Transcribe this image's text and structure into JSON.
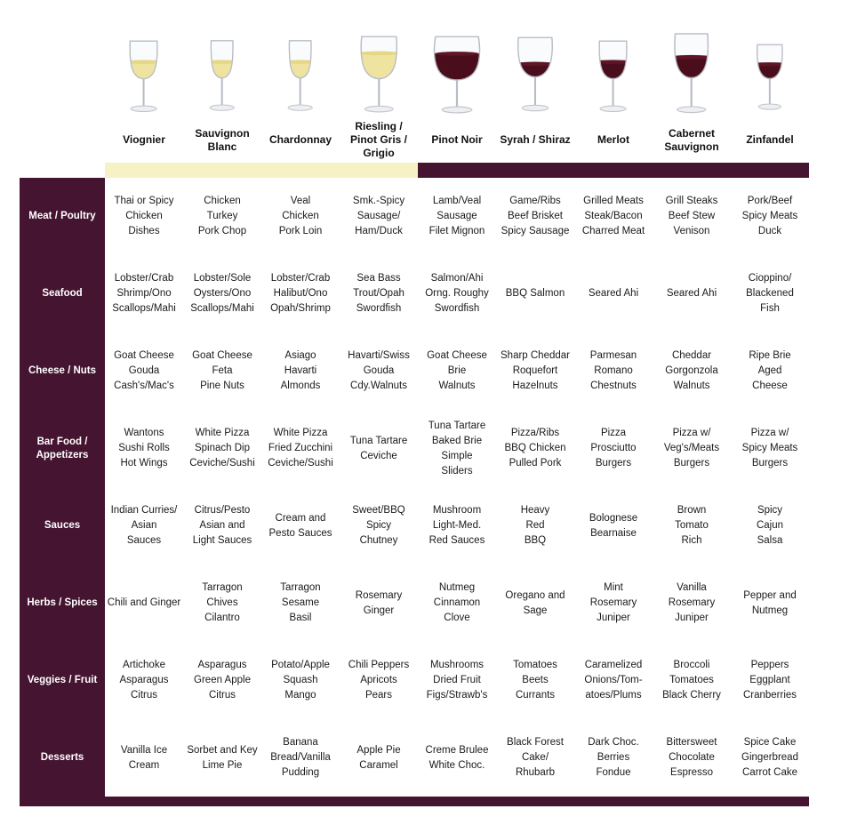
{
  "colors": {
    "maroon": "#451430",
    "white_band": "#F6F2C6",
    "white_wine": "#EFE3A0",
    "white_wine_surface": "#E4D788",
    "red_wine": "#4A0D1B",
    "red_wine_surface": "#5E1626",
    "text": "#1A1A1A"
  },
  "chart_data": {
    "type": "table",
    "columns": [
      {
        "name": "Viognier",
        "wine": "white",
        "glass": "taper"
      },
      {
        "name": "Sauvignon Blanc",
        "wine": "white",
        "glass": "flute"
      },
      {
        "name": "Chardonnay",
        "wine": "white",
        "glass": "flute"
      },
      {
        "name": "Riesling / Pinot Gris / Grigio",
        "wine": "white",
        "glass": "round"
      },
      {
        "name": "Pinot Noir",
        "wine": "red",
        "glass": "balloon"
      },
      {
        "name": "Syrah / Shiraz",
        "wine": "red",
        "glass": "tulip"
      },
      {
        "name": "Merlot",
        "wine": "red",
        "glass": "taper"
      },
      {
        "name": "Cabernet Sauvignon",
        "wine": "red",
        "glass": "large"
      },
      {
        "name": "Zinfandel",
        "wine": "red",
        "glass": "small"
      }
    ],
    "rows": [
      {
        "label": "Meat / Poultry",
        "cells": [
          [
            "Thai or Spicy",
            "Chicken",
            "Dishes"
          ],
          [
            "Chicken",
            "Turkey",
            "Pork Chop"
          ],
          [
            "Veal",
            "Chicken",
            "Pork Loin"
          ],
          [
            "Smk.-Spicy",
            "Sausage/",
            "Ham/Duck"
          ],
          [
            "Lamb/Veal",
            "Sausage",
            "Filet Mignon"
          ],
          [
            "Game/Ribs",
            "Beef Brisket",
            "Spicy Sausage"
          ],
          [
            "Grilled Meats",
            "Steak/Bacon",
            "Charred Meat"
          ],
          [
            "Grill Steaks",
            "Beef Stew",
            "Venison"
          ],
          [
            "Pork/Beef",
            "Spicy Meats",
            "Duck"
          ]
        ]
      },
      {
        "label": "Seafood",
        "cells": [
          [
            "Lobster/Crab",
            "Shrimp/Ono",
            "Scallops/Mahi"
          ],
          [
            "Lobster/Sole",
            "Oysters/Ono",
            "Scallops/Mahi"
          ],
          [
            "Lobster/Crab",
            "Halibut/Ono",
            "Opah/Shrimp"
          ],
          [
            "Sea Bass",
            "Trout/Opah",
            "Swordfish"
          ],
          [
            "Salmon/Ahi",
            "Orng. Roughy",
            "Swordfish"
          ],
          [
            "BBQ Salmon"
          ],
          [
            "Seared Ahi"
          ],
          [
            "Seared Ahi"
          ],
          [
            "Cioppino/",
            "Blackened",
            "Fish"
          ]
        ]
      },
      {
        "label": "Cheese / Nuts",
        "cells": [
          [
            "Goat Cheese",
            "Gouda",
            "Cash's/Mac's"
          ],
          [
            "Goat Cheese",
            "Feta",
            "Pine Nuts"
          ],
          [
            "Asiago",
            "Havarti",
            "Almonds"
          ],
          [
            "Havarti/Swiss",
            "Gouda",
            "Cdy.Walnuts"
          ],
          [
            "Goat Cheese",
            "Brie",
            "Walnuts"
          ],
          [
            "Sharp Cheddar",
            "Roquefort",
            "Hazelnuts"
          ],
          [
            "Parmesan",
            "Romano",
            "Chestnuts"
          ],
          [
            "Cheddar",
            "Gorgonzola",
            "Walnuts"
          ],
          [
            "Ripe Brie",
            "Aged",
            "Cheese"
          ]
        ]
      },
      {
        "label": "Bar Food / Appetizers",
        "cells": [
          [
            "Wantons",
            "Sushi Rolls",
            "Hot Wings"
          ],
          [
            "White Pizza",
            "Spinach Dip",
            "Ceviche/Sushi"
          ],
          [
            "White Pizza",
            "Fried Zucchini",
            "Ceviche/Sushi"
          ],
          [
            "Tuna Tartare",
            "Ceviche"
          ],
          [
            "Tuna Tartare",
            "Baked Brie",
            "Simple",
            "Sliders"
          ],
          [
            "Pizza/Ribs",
            "BBQ Chicken",
            "Pulled Pork"
          ],
          [
            "Pizza",
            "Prosciutto",
            "Burgers"
          ],
          [
            "Pizza w/",
            "Veg's/Meats",
            "Burgers"
          ],
          [
            "Pizza w/",
            "Spicy Meats",
            "Burgers"
          ]
        ]
      },
      {
        "label": "Sauces",
        "cells": [
          [
            "Indian Curries/",
            "Asian",
            "Sauces"
          ],
          [
            "Citrus/Pesto",
            "Asian and",
            "Light Sauces"
          ],
          [
            "Cream and",
            "Pesto Sauces"
          ],
          [
            "Sweet/BBQ",
            "Spicy",
            "Chutney"
          ],
          [
            "Mushroom",
            "Light-Med.",
            "Red Sauces"
          ],
          [
            "Heavy",
            "Red",
            "BBQ"
          ],
          [
            "Bolognese",
            "Bearnaise"
          ],
          [
            "Brown",
            "Tomato",
            "Rich"
          ],
          [
            "Spicy",
            "Cajun",
            "Salsa"
          ]
        ]
      },
      {
        "label": "Herbs / Spices",
        "cells": [
          [
            "Chili and Ginger"
          ],
          [
            "Tarragon",
            "Chives",
            "Cilantro"
          ],
          [
            "Tarragon",
            "Sesame",
            "Basil"
          ],
          [
            "Rosemary",
            "Ginger"
          ],
          [
            "Nutmeg",
            "Cinnamon",
            "Clove"
          ],
          [
            "Oregano and",
            "Sage"
          ],
          [
            "Mint",
            "Rosemary",
            "Juniper"
          ],
          [
            "Vanilla",
            "Rosemary",
            "Juniper"
          ],
          [
            "Pepper and",
            "Nutmeg"
          ]
        ]
      },
      {
        "label": "Veggies / Fruit",
        "cells": [
          [
            "Artichoke",
            "Asparagus",
            "Citrus"
          ],
          [
            "Asparagus",
            "Green Apple",
            "Citrus"
          ],
          [
            "Potato/Apple",
            "Squash",
            "Mango"
          ],
          [
            "Chili Peppers",
            "Apricots",
            "Pears"
          ],
          [
            "Mushrooms",
            "Dried Fruit",
            "Figs/Strawb's"
          ],
          [
            "Tomatoes",
            "Beets",
            "Currants"
          ],
          [
            "Caramelized",
            "Onions/Tom-",
            "atoes/Plums"
          ],
          [
            "Broccoli",
            "Tomatoes",
            "Black Cherry"
          ],
          [
            "Peppers",
            "Eggplant",
            "Cranberries"
          ]
        ]
      },
      {
        "label": "Desserts",
        "cells": [
          [
            "Vanilla Ice",
            "Cream"
          ],
          [
            "Sorbet and Key",
            "Lime Pie"
          ],
          [
            "Banana",
            "Bread/Vanilla",
            "Pudding"
          ],
          [
            "Apple Pie",
            "Caramel"
          ],
          [
            "Creme Brulee",
            "White Choc."
          ],
          [
            "Black Forest",
            "Cake/",
            "Rhubarb"
          ],
          [
            "Dark Choc.",
            "Berries",
            "Fondue"
          ],
          [
            "Bittersweet",
            "Chocolate",
            "Espresso"
          ],
          [
            "Spice Cake",
            "Gingerbread",
            "Carrot Cake"
          ]
        ]
      }
    ]
  }
}
